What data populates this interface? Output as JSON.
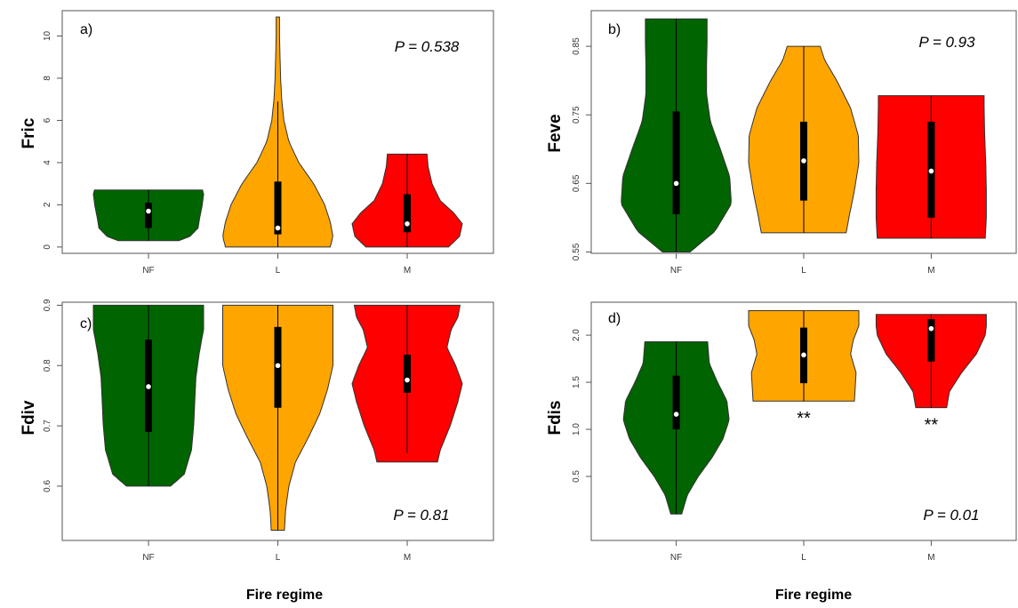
{
  "xlabel": "Fire regime",
  "colors": {
    "NF": "#006400",
    "L": "#FFA500",
    "M": "#FF0000",
    "box": "#000000",
    "median": "#ffffff"
  },
  "chart_data": [
    {
      "type": "violin",
      "panel": "a)",
      "ylabel": "Fric",
      "categories": [
        "NF",
        "L",
        "M"
      ],
      "ylim": [
        -0.3,
        11.2
      ],
      "yticks": [
        0,
        2,
        4,
        6,
        8,
        10
      ],
      "ytick_labels": [
        "0",
        "2",
        "4",
        "6",
        "8",
        "10"
      ],
      "annotation": "P = 0.538",
      "stars": [
        "",
        "",
        ""
      ],
      "series": [
        {
          "name": "NF",
          "min": 0.3,
          "max": 2.7,
          "q1": 0.9,
          "q3": 2.1,
          "median": 1.7,
          "wmin": 0.3,
          "wmax": 2.7,
          "density": [
            [
              0.3,
              0.55
            ],
            [
              0.5,
              0.75
            ],
            [
              0.9,
              0.9
            ],
            [
              1.4,
              0.93
            ],
            [
              1.9,
              0.97
            ],
            [
              2.3,
              0.99
            ],
            [
              2.5,
              1.0
            ],
            [
              2.7,
              0.98
            ]
          ]
        },
        {
          "name": "L",
          "min": 0.0,
          "max": 10.9,
          "q1": 0.6,
          "q3": 3.1,
          "median": 0.9,
          "wmin": 0.0,
          "wmax": 6.9,
          "density": [
            [
              0.0,
              0.95
            ],
            [
              0.5,
              1.0
            ],
            [
              1.2,
              0.95
            ],
            [
              2.0,
              0.85
            ],
            [
              3.0,
              0.65
            ],
            [
              4.0,
              0.38
            ],
            [
              5.0,
              0.2
            ],
            [
              6.0,
              0.11
            ],
            [
              7.0,
              0.07
            ],
            [
              8.0,
              0.05
            ],
            [
              9.0,
              0.04
            ],
            [
              10.0,
              0.03
            ],
            [
              10.9,
              0.03
            ]
          ]
        },
        {
          "name": "M",
          "min": 0.0,
          "max": 4.4,
          "q1": 0.7,
          "q3": 2.5,
          "median": 1.1,
          "wmin": 0.0,
          "wmax": 4.4,
          "density": [
            [
              0.0,
              0.75
            ],
            [
              0.5,
              0.95
            ],
            [
              1.1,
              1.0
            ],
            [
              1.6,
              0.85
            ],
            [
              2.2,
              0.6
            ],
            [
              3.0,
              0.45
            ],
            [
              3.8,
              0.38
            ],
            [
              4.4,
              0.36
            ]
          ]
        }
      ]
    },
    {
      "type": "violin",
      "panel": "b)",
      "ylabel": "Feve",
      "categories": [
        "NF",
        "L",
        "M"
      ],
      "ylim": [
        0.548,
        0.902
      ],
      "yticks": [
        0.55,
        0.65,
        0.75,
        0.85
      ],
      "ytick_labels": [
        "0.55",
        "0.65",
        "0.75",
        "0.85"
      ],
      "annotation": "P = 0.93",
      "stars": [
        "",
        "",
        ""
      ],
      "series": [
        {
          "name": "NF",
          "min": 0.55,
          "max": 0.89,
          "q1": 0.605,
          "q3": 0.755,
          "median": 0.65,
          "wmin": 0.55,
          "wmax": 0.89,
          "density": [
            [
              0.55,
              0.25
            ],
            [
              0.58,
              0.7
            ],
            [
              0.62,
              1.0
            ],
            [
              0.66,
              0.97
            ],
            [
              0.7,
              0.8
            ],
            [
              0.74,
              0.62
            ],
            [
              0.78,
              0.55
            ],
            [
              0.82,
              0.55
            ],
            [
              0.86,
              0.56
            ],
            [
              0.89,
              0.56
            ]
          ]
        },
        {
          "name": "L",
          "min": 0.578,
          "max": 0.85,
          "q1": 0.625,
          "q3": 0.74,
          "median": 0.683,
          "wmin": 0.578,
          "wmax": 0.85,
          "density": [
            [
              0.578,
              0.77
            ],
            [
              0.6,
              0.82
            ],
            [
              0.64,
              0.92
            ],
            [
              0.68,
              1.0
            ],
            [
              0.72,
              0.99
            ],
            [
              0.76,
              0.85
            ],
            [
              0.8,
              0.6
            ],
            [
              0.83,
              0.38
            ],
            [
              0.85,
              0.3
            ]
          ]
        },
        {
          "name": "M",
          "min": 0.57,
          "max": 0.778,
          "q1": 0.6,
          "q3": 0.74,
          "median": 0.668,
          "wmin": 0.57,
          "wmax": 0.778,
          "density": [
            [
              0.57,
              0.98
            ],
            [
              0.6,
              1.0
            ],
            [
              0.64,
              1.0
            ],
            [
              0.68,
              0.99
            ],
            [
              0.72,
              0.97
            ],
            [
              0.76,
              0.96
            ],
            [
              0.778,
              0.96
            ]
          ]
        }
      ]
    },
    {
      "type": "violin",
      "panel": "c)",
      "ylabel": "Fdiv",
      "categories": [
        "NF",
        "L",
        "M"
      ],
      "ylim": [
        0.51,
        0.905
      ],
      "yticks": [
        0.6,
        0.7,
        0.8,
        0.9
      ],
      "ytick_labels": [
        "0.6",
        "0.7",
        "0.8",
        "0.9"
      ],
      "annotation": "P = 0.81",
      "stars": [
        "",
        "",
        ""
      ],
      "series": [
        {
          "name": "NF",
          "min": 0.6,
          "max": 0.9,
          "q1": 0.69,
          "q3": 0.843,
          "median": 0.765,
          "wmin": 0.6,
          "wmax": 0.9,
          "density": [
            [
              0.6,
              0.4
            ],
            [
              0.62,
              0.65
            ],
            [
              0.66,
              0.78
            ],
            [
              0.7,
              0.82
            ],
            [
              0.74,
              0.84
            ],
            [
              0.78,
              0.86
            ],
            [
              0.82,
              0.92
            ],
            [
              0.86,
              1.0
            ],
            [
              0.9,
              1.0
            ]
          ]
        },
        {
          "name": "L",
          "min": 0.527,
          "max": 0.9,
          "q1": 0.73,
          "q3": 0.864,
          "median": 0.8,
          "wmin": 0.527,
          "wmax": 0.9,
          "density": [
            [
              0.527,
              0.12
            ],
            [
              0.56,
              0.14
            ],
            [
              0.6,
              0.2
            ],
            [
              0.64,
              0.32
            ],
            [
              0.68,
              0.55
            ],
            [
              0.72,
              0.76
            ],
            [
              0.76,
              0.9
            ],
            [
              0.8,
              1.0
            ],
            [
              0.84,
              1.0
            ],
            [
              0.88,
              1.0
            ],
            [
              0.9,
              1.0
            ]
          ]
        },
        {
          "name": "M",
          "min": 0.64,
          "max": 0.9,
          "q1": 0.755,
          "q3": 0.818,
          "median": 0.776,
          "wmin": 0.655,
          "wmax": 0.9,
          "density": [
            [
              0.64,
              0.55
            ],
            [
              0.66,
              0.6
            ],
            [
              0.7,
              0.78
            ],
            [
              0.74,
              0.92
            ],
            [
              0.77,
              1.0
            ],
            [
              0.8,
              0.88
            ],
            [
              0.83,
              0.72
            ],
            [
              0.86,
              0.8
            ],
            [
              0.88,
              0.92
            ],
            [
              0.9,
              0.96
            ]
          ]
        }
      ]
    },
    {
      "type": "violin",
      "panel": "d)",
      "ylabel": "Fdis",
      "categories": [
        "NF",
        "L",
        "M"
      ],
      "ylim": [
        -0.18,
        2.35
      ],
      "yticks": [
        0.5,
        1.0,
        1.5,
        2.0
      ],
      "ytick_labels": [
        "0.5",
        "1.0",
        "1.5",
        "2.0"
      ],
      "annotation": "P = 0.01",
      "stars": [
        "",
        "**",
        "**"
      ],
      "series": [
        {
          "name": "NF",
          "min": 0.1,
          "max": 1.93,
          "q1": 1.0,
          "q3": 1.57,
          "median": 1.16,
          "wmin": 0.1,
          "wmax": 1.93,
          "density": [
            [
              0.1,
              0.1
            ],
            [
              0.3,
              0.2
            ],
            [
              0.5,
              0.4
            ],
            [
              0.7,
              0.65
            ],
            [
              0.9,
              0.85
            ],
            [
              1.1,
              0.96
            ],
            [
              1.3,
              0.92
            ],
            [
              1.5,
              0.75
            ],
            [
              1.7,
              0.6
            ],
            [
              1.93,
              0.57
            ]
          ]
        },
        {
          "name": "L",
          "min": 1.3,
          "max": 2.26,
          "q1": 1.49,
          "q3": 2.08,
          "median": 1.79,
          "wmin": 1.3,
          "wmax": 2.26,
          "density": [
            [
              1.3,
              0.92
            ],
            [
              1.4,
              0.93
            ],
            [
              1.6,
              0.95
            ],
            [
              1.8,
              0.85
            ],
            [
              1.95,
              0.9
            ],
            [
              2.1,
              1.0
            ],
            [
              2.26,
              1.0
            ]
          ]
        },
        {
          "name": "M",
          "min": 1.23,
          "max": 2.22,
          "q1": 1.72,
          "q3": 2.17,
          "median": 2.07,
          "wmin": 1.23,
          "wmax": 2.22,
          "density": [
            [
              1.23,
              0.28
            ],
            [
              1.4,
              0.33
            ],
            [
              1.6,
              0.55
            ],
            [
              1.8,
              0.82
            ],
            [
              2.0,
              0.98
            ],
            [
              2.1,
              1.0
            ],
            [
              2.22,
              1.0
            ]
          ]
        }
      ]
    }
  ]
}
